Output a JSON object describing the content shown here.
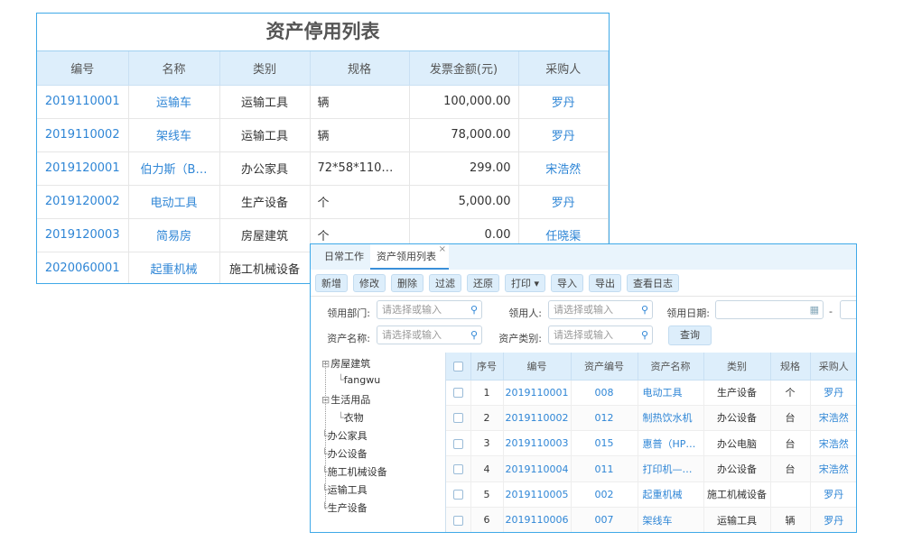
{
  "back": {
    "title": "资产停用列表",
    "headers": [
      "编号",
      "名称",
      "类别",
      "规格",
      "发票金额(元)",
      "采购人"
    ],
    "rows": [
      [
        "2019110001",
        "运输车",
        "运输工具",
        "辆",
        "100,000.00",
        "罗丹"
      ],
      [
        "2019110002",
        "架线车",
        "运输工具",
        "辆",
        "78,000.00",
        "罗丹"
      ],
      [
        "2019120001",
        "伯力斯（B…",
        "办公家具",
        "72*58*110~1…",
        "299.00",
        "宋浩然"
      ],
      [
        "2019120002",
        "电动工具",
        "生产设备",
        "个",
        "5,000.00",
        "罗丹"
      ],
      [
        "2019120003",
        "简易房",
        "房屋建筑",
        "个",
        "0.00",
        "任晓渠"
      ],
      [
        "2020060001",
        "起重机械",
        "施工机械设备",
        "",
        "",
        ""
      ]
    ]
  },
  "front": {
    "tabs": [
      {
        "label": "日常工作"
      },
      {
        "label": "资产领用列表",
        "close": "×"
      }
    ],
    "toolbar": [
      "新增",
      "修改",
      "删除",
      "过滤",
      "还原",
      "打印 ▾",
      "导入",
      "导出",
      "查看日志"
    ],
    "filters": {
      "dept_label": "领用部门:",
      "user_label": "领用人:",
      "date_label": "领用日期:",
      "name_label": "资产名称:",
      "type_label": "资产类别:",
      "placeholder": "请选择或输入",
      "date_sep": "-",
      "query": "查询"
    },
    "tree": [
      {
        "label": "房屋建筑",
        "expand": "⊟"
      },
      {
        "label": "fangwu"
      },
      {
        "label": "生活用品",
        "expand": "⊟"
      },
      {
        "label": "衣物"
      },
      {
        "label": "办公家具"
      },
      {
        "label": "办公设备"
      },
      {
        "label": "施工机械设备"
      },
      {
        "label": "运输工具"
      },
      {
        "label": "生产设备"
      }
    ],
    "headers": [
      "序号",
      "编号",
      "资产编号",
      "资产名称",
      "类别",
      "规格",
      "采购人"
    ],
    "rows": [
      [
        "1",
        "2019110001",
        "008",
        "电动工具",
        "生产设备",
        "个",
        "罗丹"
      ],
      [
        "2",
        "2019110002",
        "012",
        "制热饮水机",
        "办公设备",
        "台",
        "宋浩然"
      ],
      [
        "3",
        "2019110003",
        "015",
        "惠普（HP…",
        "办公电脑",
        "台",
        "宋浩然"
      ],
      [
        "4",
        "2019110004",
        "011",
        "打印机—…",
        "办公设备",
        "台",
        "宋浩然"
      ],
      [
        "5",
        "2019110005",
        "002",
        "起重机械",
        "施工机械设备",
        "",
        "罗丹"
      ],
      [
        "6",
        "2019110006",
        "007",
        "架线车",
        "运输工具",
        "辆",
        "罗丹"
      ]
    ]
  }
}
